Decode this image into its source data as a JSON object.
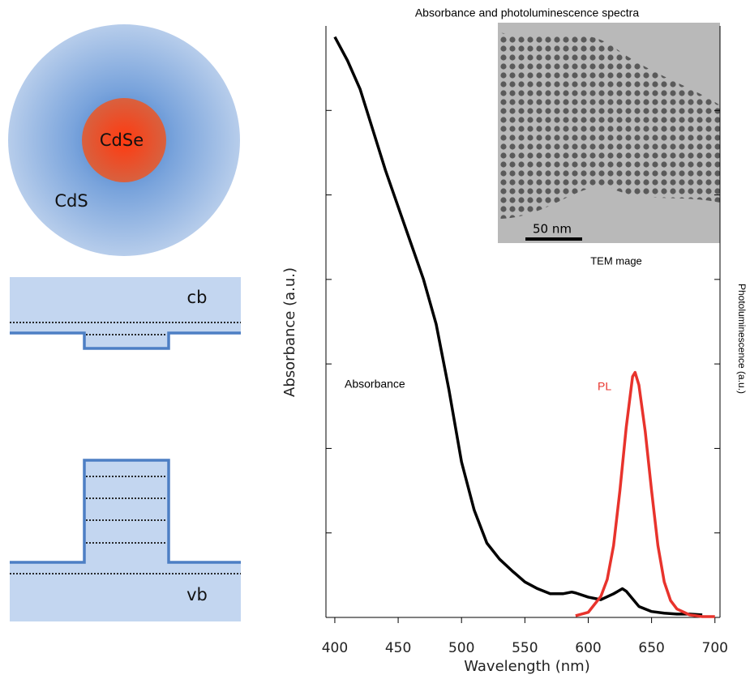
{
  "chart_data": {
    "type": "line",
    "title": "Absorbance and photoluminescence spectra",
    "xlabel": "Wavelength (nm)",
    "ylabel": "Absorbance (a.u.)",
    "y2label": "Photoluminescence (a.u.)",
    "annotations": [
      "Absorbance",
      "PL",
      "TEM mage",
      "50 nm"
    ],
    "xlim": [
      393,
      704
    ],
    "xticks": [
      400,
      450,
      500,
      550,
      600,
      650,
      700
    ],
    "ylim": [
      0,
      7
    ],
    "yticks": [
      1,
      2,
      3,
      4,
      5,
      6
    ],
    "y2lim": [
      0,
      7
    ],
    "y2ticks": [
      1,
      2,
      3,
      4,
      5,
      6
    ],
    "series": [
      {
        "name": "Absorbance",
        "color": "#000000",
        "x": [
          400,
          410,
          420,
          430,
          440,
          450,
          460,
          470,
          480,
          490,
          500,
          510,
          520,
          530,
          540,
          550,
          560,
          570,
          580,
          587,
          590,
          600,
          610,
          620,
          627,
          630,
          640,
          650,
          660,
          670,
          680,
          690
        ],
        "values": [
          6.87,
          6.59,
          6.25,
          5.77,
          5.29,
          4.86,
          4.43,
          4.0,
          3.47,
          2.7,
          1.84,
          1.27,
          0.88,
          0.69,
          0.55,
          0.42,
          0.34,
          0.28,
          0.28,
          0.3,
          0.29,
          0.24,
          0.21,
          0.28,
          0.34,
          0.31,
          0.13,
          0.07,
          0.05,
          0.04,
          0.04,
          0.03
        ]
      },
      {
        "name": "PL",
        "color": "#e8332c",
        "axis": "y2",
        "x": [
          590,
          600,
          610,
          615,
          620,
          625,
          630,
          635,
          637,
          640,
          645,
          650,
          655,
          660,
          665,
          670,
          680,
          690,
          700
        ],
        "values": [
          0.02,
          0.06,
          0.25,
          0.45,
          0.85,
          1.5,
          2.25,
          2.85,
          2.9,
          2.75,
          2.2,
          1.5,
          0.85,
          0.42,
          0.2,
          0.1,
          0.03,
          0.01,
          0.01
        ]
      }
    ]
  },
  "diagram": {
    "core_label": "CdSe",
    "shell_label": "CdS",
    "cb_label": "cb",
    "vb_label": "vb"
  }
}
